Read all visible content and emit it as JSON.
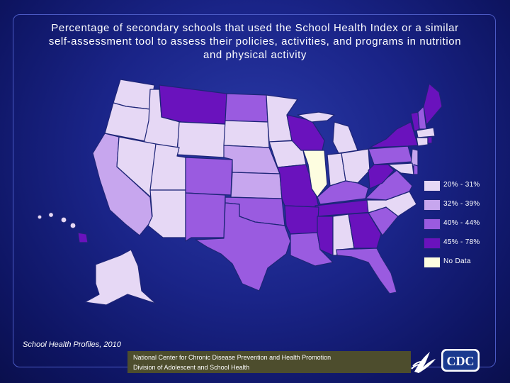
{
  "title": "Percentage of secondary schools that used the School Health Index or a similar self-assessment tool to assess their policies, activities, and programs in nutrition and physical activity",
  "title_lines": [
    "Percentage of secondary schools that used the School Health Index or a similar",
    "self-assessment tool to assess their policies, activities, and programs in nutrition",
    "and physical activity"
  ],
  "legend": [
    {
      "label": "20% - 31%",
      "color": "#e6d8f5"
    },
    {
      "label": "32% - 39%",
      "color": "#c7a6ee"
    },
    {
      "label": "40% - 44%",
      "color": "#9a5be0"
    },
    {
      "label": "45% - 78%",
      "color": "#6a12bd"
    },
    {
      "label": "No Data",
      "color": "#fdfde0"
    }
  ],
  "categories": {
    "c1": "20% - 31%",
    "c2": "32% - 39%",
    "c3": "40% - 44%",
    "c4": "45% - 78%",
    "nd": "No Data"
  },
  "source": "School Health Profiles, 2010",
  "footer": {
    "line1": "National Center for Chronic Disease Prevention and Health Promotion",
    "line2": "Division of Adolescent and School Health"
  },
  "logo": {
    "text": "CDC"
  }
}
